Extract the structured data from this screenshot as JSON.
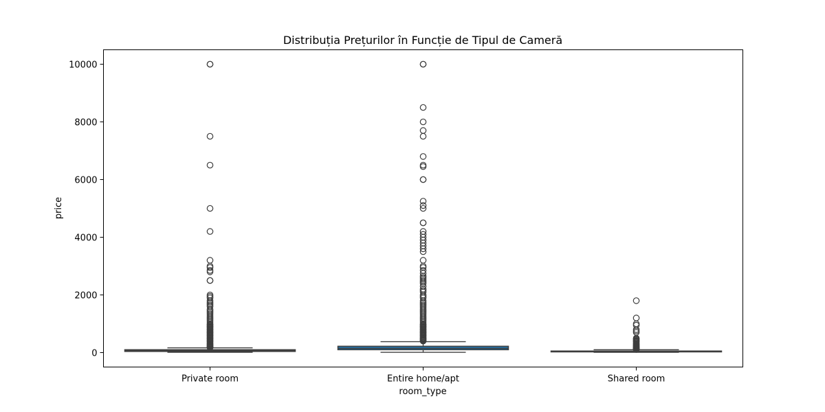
{
  "chart_data": {
    "type": "boxplot",
    "title": "Distribuția Prețurilor în Funcție de Tipul de Cameră",
    "xlabel": "room_type",
    "ylabel": "price",
    "ylim": [
      -500,
      10500
    ],
    "yticks": [
      0,
      2000,
      4000,
      6000,
      8000,
      10000
    ],
    "grid": false,
    "categories": [
      "Private room",
      "Entire home/apt",
      "Shared room"
    ],
    "box_colors": [
      "#1f77b4",
      "#1f77b4",
      "#1f77b4"
    ],
    "boxes": [
      {
        "category": "Private room",
        "whisker_low": 10,
        "q1": 40,
        "median": 65,
        "q3": 100,
        "whisker_high": 165,
        "outliers": [
          10000,
          10000,
          7500,
          6500,
          5000,
          4200,
          3200,
          3000,
          2950,
          2850,
          2800,
          2500,
          2500,
          2000,
          1950,
          1900,
          1800,
          1750,
          1700,
          1650,
          1600,
          1500,
          1450,
          1400,
          1350,
          1300,
          1250,
          1200,
          1150,
          1100,
          1050,
          1000,
          980,
          950,
          920,
          900,
          880,
          850,
          820,
          800,
          780,
          750,
          720,
          700,
          680,
          650,
          620,
          600,
          580,
          550,
          520,
          500,
          480,
          450,
          420,
          400,
          380,
          350,
          320,
          300,
          280,
          260,
          240,
          220,
          200,
          185,
          175
        ]
      },
      {
        "category": "Entire home/apt",
        "whisker_low": 10,
        "q1": 100,
        "median": 150,
        "q3": 220,
        "whisker_high": 380,
        "outliers": [
          10000,
          10000,
          8500,
          8000,
          7700,
          7500,
          6800,
          6500,
          6450,
          6000,
          6000,
          5250,
          5100,
          5000,
          4500,
          4500,
          4200,
          4100,
          4000,
          3900,
          3800,
          3700,
          3600,
          3500,
          3200,
          3000,
          2950,
          2850,
          2750,
          2650,
          2600,
          2550,
          2500,
          2450,
          2400,
          2300,
          2200,
          2150,
          2100,
          2000,
          1950,
          1900,
          1800,
          1750,
          1700,
          1650,
          1600,
          1550,
          1500,
          1450,
          1400,
          1350,
          1300,
          1250,
          1200,
          1150,
          1100,
          1050,
          1000,
          980,
          950,
          920,
          900,
          880,
          850,
          820,
          800,
          780,
          750,
          720,
          700,
          680,
          650,
          620,
          600,
          580,
          550,
          520,
          500,
          480,
          460,
          440,
          420,
          400
        ]
      },
      {
        "category": "Shared room",
        "whisker_low": 10,
        "q1": 25,
        "median": 35,
        "q3": 55,
        "whisker_high": 100,
        "outliers": [
          1800,
          1200,
          1000,
          950,
          800,
          750,
          700,
          500,
          480,
          450,
          420,
          400,
          380,
          350,
          320,
          300,
          280,
          260,
          240,
          220,
          200,
          185,
          170,
          155,
          140,
          125,
          115,
          108
        ]
      }
    ]
  }
}
